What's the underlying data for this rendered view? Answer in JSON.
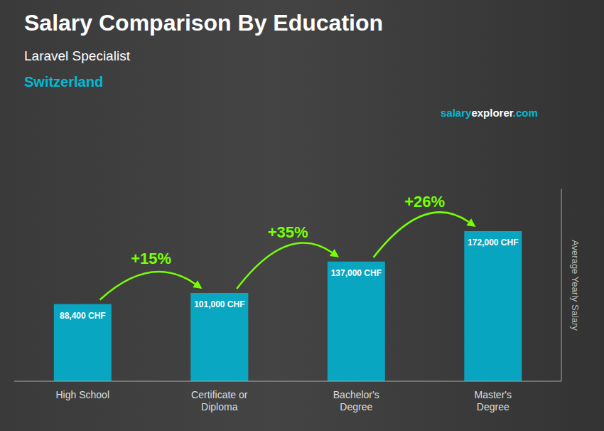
{
  "chart_data": {
    "type": "bar",
    "title": "Salary Comparison By Education",
    "subtitle": "Laravel Specialist",
    "categories": [
      "High School",
      "Certificate or\nDiploma",
      "Bachelor's\nDegree",
      "Master's\nDegree"
    ],
    "values": [
      88400,
      101000,
      137000,
      172000
    ],
    "value_labels": [
      "88,400 CHF",
      "101,000 CHF",
      "137,000 CHF",
      "172,000 CHF"
    ],
    "color": "#00b8d9",
    "ylabel": "Average Yearly Salary",
    "ylim": [
      0,
      220000
    ],
    "grid": false,
    "data_labels": true,
    "tick_labels": "x",
    "annotations": [
      {
        "text": "Switzerland",
        "color": "#00bcd4"
      },
      {
        "text": "salary",
        "color": "#00bcd4"
      },
      {
        "text": "explorer",
        "color": "#ffffff"
      },
      {
        "text": ".com",
        "color": "#00bcd4"
      },
      {
        "text": "+15%",
        "color": "#76ff03",
        "from": "High School",
        "to": "Certificate or\nDiploma"
      },
      {
        "text": "+35%",
        "color": "#76ff03",
        "from": "Certificate or\nDiploma",
        "to": "Bachelor's\nDegree"
      },
      {
        "text": "+26%",
        "color": "#76ff03",
        "from": "Bachelor's\nDegree",
        "to": "Master's\nDegree"
      }
    ]
  }
}
